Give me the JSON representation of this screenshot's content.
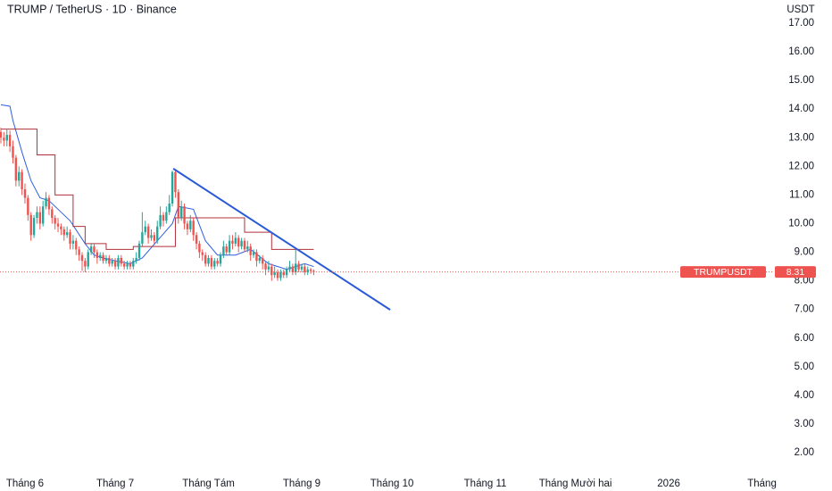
{
  "chart_data": {
    "type": "candlestick",
    "title": "TRUMP / TetherUS · 1D · Binance",
    "y_axis_unit": "USDT",
    "symbol": "TRUMPUSDT",
    "last_price": 8.31,
    "up_color": "#26a69a",
    "down_color": "#ef5350",
    "xlim": [
      -8.3,
      248.4
    ],
    "ylim": [
      1.44,
      17.81
    ],
    "xticks": [
      {
        "value": 0,
        "label": "Tháng 6"
      },
      {
        "value": 30,
        "label": "Tháng 7"
      },
      {
        "value": 61,
        "label": "Tháng Tám"
      },
      {
        "value": 92,
        "label": "Tháng 9"
      },
      {
        "value": 122,
        "label": "Tháng 10"
      },
      {
        "value": 153,
        "label": "Tháng 11"
      },
      {
        "value": 183,
        "label": "Tháng Mười hai"
      },
      {
        "value": 214,
        "label": "2026"
      },
      {
        "value": 245,
        "label": "Tháng"
      }
    ],
    "yticks": [
      {
        "value": 2,
        "label": "2.00"
      },
      {
        "value": 3,
        "label": "3.00"
      },
      {
        "value": 4,
        "label": "4.00"
      },
      {
        "value": 5,
        "label": "5.00"
      },
      {
        "value": 6,
        "label": "6.00"
      },
      {
        "value": 7,
        "label": "7.00"
      },
      {
        "value": 8,
        "label": "8.00"
      },
      {
        "value": 9,
        "label": "9.00"
      },
      {
        "value": 10,
        "label": "10.00"
      },
      {
        "value": 11,
        "label": "11.00"
      },
      {
        "value": 12,
        "label": "12.00"
      },
      {
        "value": 13,
        "label": "13.00"
      },
      {
        "value": 14,
        "label": "14.00"
      },
      {
        "value": 15,
        "label": "15.00"
      },
      {
        "value": 16,
        "label": "16.00"
      },
      {
        "value": 17,
        "label": "17.00"
      }
    ],
    "x": [
      -8,
      -7,
      -6,
      -5,
      -4,
      -3,
      -2,
      -1,
      0,
      1,
      2,
      3,
      4,
      5,
      6,
      7,
      8,
      9,
      10,
      11,
      12,
      13,
      14,
      15,
      16,
      17,
      18,
      19,
      20,
      21,
      22,
      23,
      24,
      25,
      26,
      27,
      28,
      29,
      30,
      31,
      32,
      33,
      34,
      35,
      36,
      37,
      38,
      39,
      40,
      41,
      42,
      43,
      44,
      45,
      46,
      47,
      48,
      49,
      50,
      51,
      52,
      53,
      54,
      55,
      56,
      57,
      58,
      59,
      60,
      61,
      62,
      63,
      64,
      65,
      66,
      67,
      68,
      69,
      70,
      71,
      72,
      73,
      74,
      75,
      76,
      77,
      78,
      79,
      80,
      81,
      82,
      83,
      84,
      85,
      86,
      87,
      88,
      89,
      90,
      91,
      92,
      93,
      94,
      95,
      96
    ],
    "candles": [
      [
        13.2,
        13.35,
        12.8,
        13.0
      ],
      [
        13.0,
        13.2,
        12.7,
        12.9
      ],
      [
        12.9,
        13.3,
        12.7,
        13.1
      ],
      [
        13.1,
        13.25,
        12.5,
        12.7
      ],
      [
        12.7,
        12.9,
        12.1,
        12.3
      ],
      [
        12.3,
        12.4,
        11.3,
        11.5
      ],
      [
        11.5,
        12.0,
        11.3,
        11.8
      ],
      [
        11.8,
        11.9,
        11.0,
        11.2
      ],
      [
        11.2,
        11.4,
        10.7,
        10.9
      ],
      [
        10.9,
        11.0,
        10.1,
        10.3
      ],
      [
        10.3,
        10.4,
        9.4,
        9.6
      ],
      [
        9.6,
        10.3,
        9.5,
        10.2
      ],
      [
        10.2,
        10.6,
        10.0,
        10.4
      ],
      [
        10.4,
        10.6,
        9.8,
        10.0
      ],
      [
        10.0,
        10.8,
        9.9,
        10.6
      ],
      [
        10.6,
        11.1,
        10.5,
        10.9
      ],
      [
        10.9,
        11.0,
        10.3,
        10.5
      ],
      [
        10.5,
        10.6,
        10.0,
        10.2
      ],
      [
        10.2,
        10.3,
        9.8,
        10.0
      ],
      [
        10.0,
        10.2,
        9.7,
        9.9
      ],
      [
        9.9,
        10.0,
        9.6,
        9.8
      ],
      [
        9.8,
        9.9,
        9.4,
        9.6
      ],
      [
        9.6,
        9.9,
        9.5,
        9.7
      ],
      [
        9.7,
        9.8,
        9.1,
        9.3
      ],
      [
        9.3,
        9.6,
        9.1,
        9.4
      ],
      [
        9.4,
        9.5,
        8.9,
        9.1
      ],
      [
        9.1,
        9.2,
        8.7,
        8.9
      ],
      [
        8.9,
        9.0,
        8.35,
        8.7
      ],
      [
        8.7,
        8.8,
        8.3,
        8.5
      ],
      [
        8.5,
        9.1,
        8.4,
        9.0
      ],
      [
        9.0,
        9.3,
        8.9,
        9.2
      ],
      [
        9.2,
        9.3,
        8.8,
        9.0
      ],
      [
        9.0,
        9.1,
        8.6,
        8.8
      ],
      [
        8.8,
        9.0,
        8.7,
        8.9
      ],
      [
        8.9,
        9.0,
        8.6,
        8.7
      ],
      [
        8.7,
        8.9,
        8.6,
        8.8
      ],
      [
        8.8,
        8.9,
        8.5,
        8.6
      ],
      [
        8.6,
        8.8,
        8.5,
        8.7
      ],
      [
        8.7,
        8.8,
        8.4,
        8.5
      ],
      [
        8.5,
        8.9,
        8.4,
        8.8
      ],
      [
        8.8,
        8.9,
        8.5,
        8.6
      ],
      [
        8.6,
        8.7,
        8.4,
        8.5
      ],
      [
        8.5,
        8.7,
        8.4,
        8.6
      ],
      [
        8.6,
        8.7,
        8.4,
        8.5
      ],
      [
        8.5,
        8.8,
        8.4,
        8.7
      ],
      [
        8.7,
        9.0,
        8.6,
        8.8
      ],
      [
        8.8,
        9.4,
        8.7,
        9.3
      ],
      [
        9.3,
        10.4,
        9.2,
        9.7
      ],
      [
        9.7,
        10.1,
        9.6,
        9.9
      ],
      [
        9.9,
        10.0,
        9.3,
        9.5
      ],
      [
        9.5,
        9.8,
        9.4,
        9.6
      ],
      [
        9.6,
        9.7,
        9.3,
        9.4
      ],
      [
        9.4,
        10.1,
        9.3,
        9.9
      ],
      [
        9.9,
        10.6,
        9.8,
        10.3
      ],
      [
        10.3,
        10.4,
        9.9,
        10.1
      ],
      [
        10.1,
        10.6,
        10.0,
        10.4
      ],
      [
        10.4,
        11.0,
        10.3,
        10.7
      ],
      [
        10.7,
        11.85,
        10.6,
        11.8
      ],
      [
        11.8,
        11.9,
        10.9,
        11.1
      ],
      [
        11.1,
        11.2,
        10.0,
        10.2
      ],
      [
        10.2,
        10.8,
        10.1,
        10.6
      ],
      [
        10.6,
        10.7,
        9.8,
        10.0
      ],
      [
        10.0,
        10.1,
        9.6,
        9.8
      ],
      [
        9.8,
        10.3,
        9.7,
        10.1
      ],
      [
        10.1,
        10.2,
        9.4,
        9.6
      ],
      [
        9.6,
        9.7,
        9.1,
        9.3
      ],
      [
        9.3,
        9.4,
        8.8,
        9.0
      ],
      [
        9.0,
        9.1,
        8.7,
        8.9
      ],
      [
        8.9,
        9.0,
        8.5,
        8.6
      ],
      [
        8.6,
        8.9,
        8.5,
        8.8
      ],
      [
        8.8,
        8.9,
        8.4,
        8.5
      ],
      [
        8.5,
        8.8,
        8.4,
        8.7
      ],
      [
        8.7,
        8.8,
        8.5,
        8.6
      ],
      [
        8.6,
        9.0,
        8.5,
        8.9
      ],
      [
        8.9,
        9.4,
        8.8,
        9.2
      ],
      [
        9.2,
        9.3,
        8.9,
        9.0
      ],
      [
        9.0,
        9.6,
        8.9,
        9.4
      ],
      [
        9.4,
        9.6,
        9.1,
        9.3
      ],
      [
        9.3,
        9.7,
        9.2,
        9.5
      ],
      [
        9.5,
        9.6,
        9.0,
        9.2
      ],
      [
        9.2,
        9.5,
        9.1,
        9.4
      ],
      [
        9.4,
        9.5,
        9.0,
        9.1
      ],
      [
        9.1,
        9.4,
        9.0,
        9.2
      ],
      [
        9.2,
        9.3,
        8.7,
        8.9
      ],
      [
        8.9,
        9.1,
        8.8,
        9.0
      ],
      [
        9.0,
        9.1,
        8.5,
        8.7
      ],
      [
        8.7,
        8.9,
        8.6,
        8.8
      ],
      [
        8.8,
        8.9,
        8.4,
        8.6
      ],
      [
        8.6,
        8.7,
        8.2,
        8.4
      ],
      [
        8.4,
        8.7,
        8.3,
        8.5
      ],
      [
        8.5,
        8.6,
        8.0,
        8.2
      ],
      [
        8.2,
        8.5,
        8.1,
        8.3
      ],
      [
        8.3,
        8.4,
        8.0,
        8.1
      ],
      [
        8.1,
        8.4,
        8.0,
        8.3
      ],
      [
        8.3,
        8.4,
        8.1,
        8.2
      ],
      [
        8.2,
        8.5,
        8.1,
        8.4
      ],
      [
        8.4,
        8.7,
        8.3,
        8.5
      ],
      [
        8.5,
        8.6,
        8.2,
        8.3
      ],
      [
        8.3,
        9.1,
        8.2,
        8.6
      ],
      [
        8.6,
        8.7,
        8.3,
        8.4
      ],
      [
        8.4,
        8.6,
        8.3,
        8.5
      ],
      [
        8.5,
        8.6,
        8.2,
        8.3
      ],
      [
        8.3,
        8.5,
        8.2,
        8.4
      ],
      [
        8.4,
        8.45,
        8.25,
        8.35
      ],
      [
        8.35,
        8.4,
        8.2,
        8.31
      ]
    ],
    "lines": [
      {
        "color": "#2f5fe0",
        "x": [
          -8,
          -5,
          -4,
          -1,
          2,
          5,
          8,
          11,
          15,
          20,
          23,
          26,
          30,
          35,
          39,
          44,
          49,
          51,
          56,
          60,
          64,
          70,
          75,
          81,
          87,
          93,
          96
        ],
        "values": [
          14.15,
          14.1,
          13.6,
          12.5,
          11.5,
          10.9,
          10.8,
          10.5,
          10.1,
          9.3,
          8.9,
          8.8,
          8.7,
          8.6,
          8.8,
          9.4,
          10.0,
          10.6,
          10.5,
          9.4,
          8.9,
          8.9,
          9.1,
          8.6,
          8.4,
          8.6,
          8.5
        ]
      },
      {
        "color": "#b0303a",
        "x": [
          -8,
          4,
          4,
          10,
          10,
          16,
          16,
          20,
          20,
          27,
          27,
          36,
          36,
          50,
          50,
          73,
          73,
          82,
          82,
          96
        ],
        "values": [
          13.3,
          13.3,
          12.4,
          12.4,
          11.0,
          11.0,
          9.9,
          9.9,
          9.3,
          9.3,
          9.1,
          9.1,
          9.2,
          9.2,
          10.2,
          10.2,
          9.7,
          9.7,
          9.1,
          9.1
        ]
      }
    ],
    "trendline": {
      "color": "#2a5bd7",
      "x": [
        49.3,
        121.4
      ],
      "values": [
        11.92,
        6.99
      ]
    }
  }
}
